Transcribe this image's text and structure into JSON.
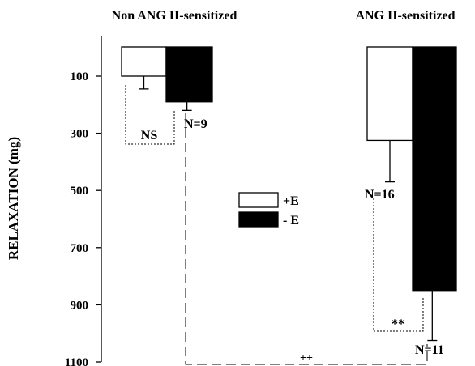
{
  "chart_data": {
    "type": "bar",
    "orientation": "downward",
    "ylabel": "RELAXATION  (mg)",
    "ylim": [
      1100,
      -50
    ],
    "yticks": [
      100,
      300,
      500,
      700,
      900,
      1100
    ],
    "groups": [
      {
        "label": "Non ANG II-sensitized",
        "n_label": "N=9",
        "significance": "NS",
        "bars": [
          {
            "series": "+E",
            "value": 100,
            "error": 45
          },
          {
            "series": "- E",
            "value": 190,
            "error": 30
          }
        ]
      },
      {
        "label": "ANG II-sensitized",
        "n_label_plus": "N=16",
        "n_label_minus": "N=11",
        "significance": "**",
        "bars": [
          {
            "series": "+E",
            "value": 325,
            "error": 145
          },
          {
            "series": "- E",
            "value": 850,
            "error": 175
          }
        ]
      }
    ],
    "between_groups_significance": "++",
    "legend": {
      "placement": "center",
      "entries": [
        {
          "label": "+E",
          "color": "#ffffff"
        },
        {
          "label": "- E",
          "color": "#000000"
        }
      ]
    },
    "grid": false
  }
}
